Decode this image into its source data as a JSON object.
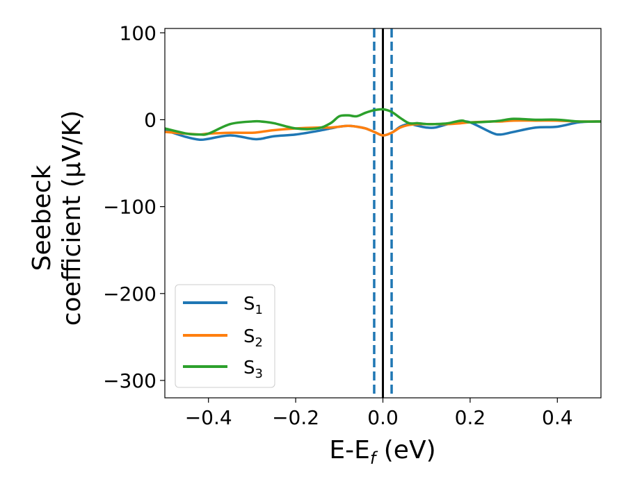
{
  "chart_data": {
    "type": "line",
    "title": "",
    "xlabel": "E-E",
    "xlabel_sub": "f",
    "xlabel_unit": " (eV)",
    "ylabel_line1": "Seebeck",
    "ylabel_line2": "coefficient  (μV/K)",
    "xlim": [
      -0.5,
      0.5
    ],
    "ylim": [
      -320,
      105
    ],
    "xticks": [
      -0.4,
      -0.2,
      0.0,
      0.2,
      0.4
    ],
    "xtick_labels": [
      "−0.4",
      "−0.2",
      "0.0",
      "0.2",
      "0.4"
    ],
    "yticks": [
      100,
      0,
      -100,
      -200,
      -300
    ],
    "ytick_labels": [
      "100",
      "0",
      "−100",
      "−200",
      "−300"
    ],
    "grid": false,
    "legend_position": "bottom-left",
    "vlines": [
      {
        "x": 0.0,
        "style": "solid",
        "color": "#000000"
      },
      {
        "x": -0.02,
        "style": "dashed",
        "color": "#1f77b4"
      },
      {
        "x": 0.02,
        "style": "dashed",
        "color": "#1f77b4"
      }
    ],
    "x": [
      -0.5,
      -0.45,
      -0.42,
      -0.4,
      -0.35,
      -0.3,
      -0.28,
      -0.25,
      -0.2,
      -0.15,
      -0.12,
      -0.1,
      -0.08,
      -0.06,
      -0.04,
      -0.02,
      0.0,
      0.02,
      0.04,
      0.06,
      0.08,
      0.1,
      0.12,
      0.15,
      0.18,
      0.2,
      0.25,
      0.27,
      0.3,
      0.35,
      0.4,
      0.45,
      0.5
    ],
    "series": [
      {
        "name": "S",
        "name_sub": "1",
        "color": "#1f77b4",
        "values": [
          -12,
          -20,
          -23,
          -22,
          -18,
          -22,
          -22,
          -19,
          -17,
          -13,
          -10,
          -8,
          -7,
          -8,
          -10,
          -14,
          -18,
          -15,
          -8,
          -5,
          -7,
          -9,
          -9,
          -5,
          -3,
          -3,
          -15,
          -17,
          -14,
          -9,
          -8,
          -3,
          -2
        ]
      },
      {
        "name": "S",
        "name_sub": "2",
        "color": "#ff7f0e",
        "values": [
          -14,
          -16,
          -17,
          -16,
          -15,
          -15,
          -14,
          -12,
          -10,
          -9,
          -9,
          -8,
          -7,
          -8,
          -10,
          -14,
          -18,
          -15,
          -9,
          -6,
          -5,
          -5,
          -5,
          -5,
          -4,
          -3,
          -2,
          -2,
          -1,
          -1,
          -1,
          -2,
          -2
        ]
      },
      {
        "name": "S",
        "name_sub": "3",
        "color": "#2ca02c",
        "values": [
          -10,
          -16,
          -17,
          -16,
          -5,
          -2,
          -2,
          -4,
          -10,
          -10,
          -4,
          4,
          5,
          4,
          8,
          11,
          12,
          9,
          2,
          -4,
          -4,
          -5,
          -5,
          -4,
          -1,
          -3,
          -2,
          -1,
          1,
          0,
          0,
          -2,
          -2
        ]
      }
    ]
  }
}
